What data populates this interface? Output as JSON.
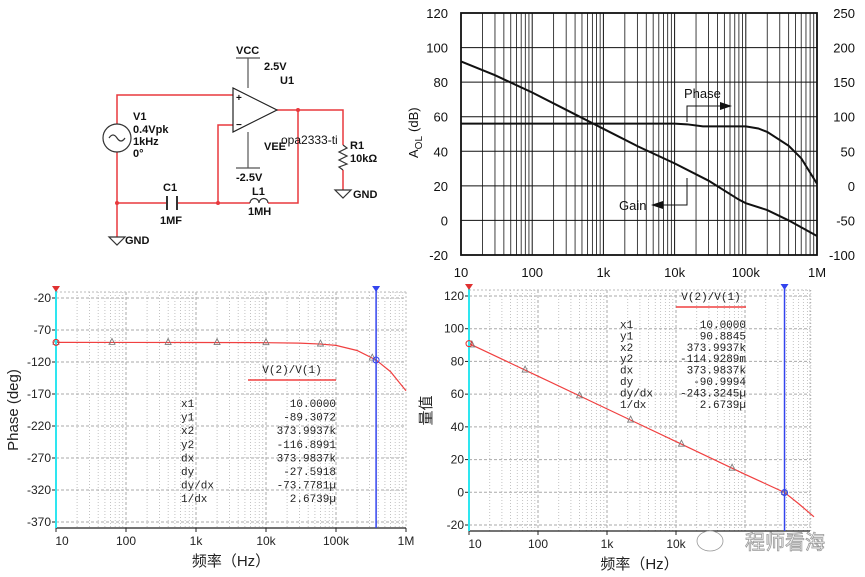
{
  "schematic": {
    "vcc_label": "VCC",
    "vcc_value": "2.5V",
    "u1": "U1",
    "vee_label": "VEE",
    "vee_value": "-2.5V",
    "part": "opa2333-ti",
    "v1": {
      "name": "V1",
      "amplitude": "0.4Vpk",
      "freq": "1kHz",
      "phase": "0°"
    },
    "c1": {
      "name": "C1",
      "value": "1MF"
    },
    "l1": {
      "name": "L1",
      "value": "1MH"
    },
    "r1": {
      "name": "R1",
      "value": "10kΩ"
    },
    "gnd": "GND",
    "plus": "+",
    "minus": "−",
    "wire_color": "#e8383d"
  },
  "chart_data": [
    {
      "type": "line",
      "x_scale": "log",
      "xlim": [
        10,
        1000000
      ],
      "xticks": [
        "10",
        "100",
        "1k",
        "10k",
        "100k",
        "1M"
      ],
      "ylim": [
        -20,
        120
      ],
      "yticks": [
        "120",
        "100",
        "80",
        "60",
        "40",
        "20",
        "0",
        "-20"
      ],
      "y2lim": [
        -100,
        250
      ],
      "y2ticks": [
        "250",
        "200",
        "150",
        "100",
        "50",
        "0",
        "-50",
        "-100"
      ],
      "ylabel": {
        "symbol": "A",
        "subscript": "OL",
        "unit": "(dB)"
      },
      "grid": true,
      "line_color": "#111111",
      "annotations": {
        "phase": "Phase",
        "gain": "Gain"
      },
      "series": [
        {
          "name": "Gain",
          "axis": "left",
          "points": [
            [
              10,
              92
            ],
            [
              30,
              84
            ],
            [
              100,
              74
            ],
            [
              300,
              64
            ],
            [
              1000,
              53
            ],
            [
              3000,
              43
            ],
            [
              10000,
              33
            ],
            [
              30000,
              23
            ],
            [
              80000,
              12
            ],
            [
              100000,
              10
            ],
            [
              200000,
              6
            ],
            [
              400000,
              0
            ],
            [
              1000000,
              -9
            ]
          ]
        },
        {
          "name": "Phase",
          "axis": "right",
          "points": [
            [
              10,
              90
            ],
            [
              10000,
              90
            ],
            [
              15000,
              89
            ],
            [
              25000,
              86
            ],
            [
              40000,
              86
            ],
            [
              100000,
              86
            ],
            [
              150000,
              83
            ],
            [
              200000,
              78
            ],
            [
              400000,
              58
            ],
            [
              600000,
              40
            ],
            [
              1000000,
              3
            ]
          ]
        }
      ]
    },
    {
      "type": "line",
      "x_scale": "log",
      "xlim": [
        10,
        1000000
      ],
      "xticks": [
        "10",
        "100",
        "1k",
        "10k",
        "100k",
        "1M"
      ],
      "ylim": [
        -370,
        -20
      ],
      "yticks": [
        "-20",
        "-70",
        "-120",
        "-170",
        "-220",
        "-270",
        "-320",
        "-370"
      ],
      "xlabel": "频率（Hz）",
      "ylabel": "Phase (deg)",
      "grid": true,
      "line_color": "#f04040",
      "cursor_colors": {
        "c1": "#2ee6f0",
        "c2": "#3344ee"
      },
      "cursors": {
        "x1": 10,
        "x2": 373993.7
      },
      "markers": [
        10,
        63,
        400,
        2000,
        10000,
        60000,
        330000
      ],
      "legend": "V(2)/V(1)",
      "series": [
        {
          "points": [
            [
              10,
              -89.3
            ],
            [
              1000,
              -89.5
            ],
            [
              10000,
              -89.8
            ],
            [
              30000,
              -90.5
            ],
            [
              60000,
              -92
            ],
            [
              100000,
              -94
            ],
            [
              200000,
              -102
            ],
            [
              373994,
              -116.9
            ],
            [
              600000,
              -135
            ],
            [
              1000000,
              -165
            ]
          ]
        }
      ],
      "readout": [
        {
          "label": "x1",
          "value": "10.0000"
        },
        {
          "label": "y1",
          "value": "-89.3072"
        },
        {
          "label": "x2",
          "value": "373.9937k"
        },
        {
          "label": "y2",
          "value": "-116.8991"
        },
        {
          "label": "dx",
          "value": "373.9837k"
        },
        {
          "label": "dy",
          "value": "-27.5918"
        },
        {
          "label": "dy/dx",
          "value": "-73.7781µ"
        },
        {
          "label": "1/dx",
          "value": "2.6739µ"
        }
      ]
    },
    {
      "type": "line",
      "x_scale": "log",
      "xlim": [
        10,
        1000000
      ],
      "xticks": [
        "10",
        "100",
        "1k",
        "10k"
      ],
      "ylim": [
        -20,
        120
      ],
      "yticks": [
        "120",
        "100",
        "80",
        "60",
        "40",
        "20",
        "0",
        "-20"
      ],
      "xlabel": "频率（Hz）",
      "ylabel": "量值",
      "grid": true,
      "line_color": "#f04040",
      "cursor_colors": {
        "c1": "#2ee6f0",
        "c2": "#3344ee"
      },
      "cursors": {
        "x1": 10,
        "x2": 373993.7
      },
      "markers": [
        11,
        65,
        400,
        2200,
        12000,
        65000,
        373994
      ],
      "legend": "V(2)/V(1)",
      "series": [
        {
          "points": [
            [
              10,
              90.9
            ],
            [
              100,
              71
            ],
            [
              1000,
              51
            ],
            [
              10000,
              31
            ],
            [
              100000,
              11
            ],
            [
              373994,
              -0.11
            ],
            [
              600000,
              -7
            ],
            [
              1000000,
              -15
            ]
          ]
        }
      ],
      "readout": [
        {
          "label": "x1",
          "value": "10.0000"
        },
        {
          "label": "y1",
          "value": "90.8845"
        },
        {
          "label": "x2",
          "value": "373.9937k"
        },
        {
          "label": "y2",
          "value": "-114.9289m"
        },
        {
          "label": "dx",
          "value": "373.9837k"
        },
        {
          "label": "dy",
          "value": "-90.9994"
        },
        {
          "label": "dy/dx",
          "value": "-243.3245µ"
        },
        {
          "label": "1/dx",
          "value": "2.6739µ"
        }
      ]
    }
  ],
  "watermark": "程师看海"
}
